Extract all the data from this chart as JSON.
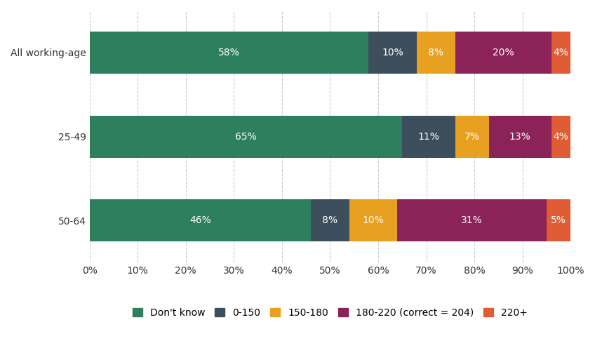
{
  "categories": [
    "All working-age",
    "25-49",
    "50-64"
  ],
  "series": {
    "Don't know": [
      58,
      65,
      46
    ],
    "0-150": [
      10,
      11,
      8
    ],
    "150-180": [
      8,
      7,
      10
    ],
    "180-220 (correct = 204)": [
      20,
      13,
      31
    ],
    "220+": [
      4,
      4,
      5
    ]
  },
  "colors": {
    "Don't know": "#2d7f5e",
    "0-150": "#3d4f5c",
    "150-180": "#e8a020",
    "180-220 (correct = 204)": "#8b2258",
    "220+": "#e05c35"
  },
  "bar_height": 0.5,
  "xlim": [
    0,
    100
  ],
  "xticks": [
    0,
    10,
    20,
    30,
    40,
    50,
    60,
    70,
    80,
    90,
    100
  ],
  "background_color": "#ffffff",
  "text_color": "#333333",
  "grid_color": "#cccccc",
  "label_fontsize": 10,
  "tick_fontsize": 10,
  "legend_fontsize": 10
}
